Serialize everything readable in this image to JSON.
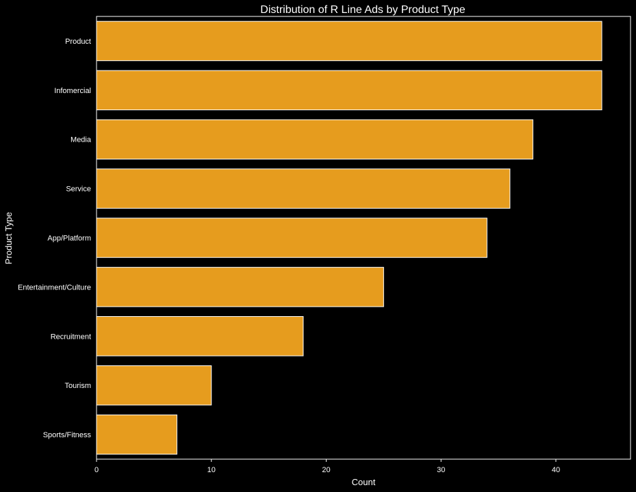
{
  "chart_data": {
    "type": "bar",
    "orientation": "horizontal",
    "title": "Distribution of R Line Ads by Product Type",
    "xlabel": "Count",
    "ylabel": "Product Type",
    "categories": [
      "Product",
      "Infomercial",
      "Media",
      "Service",
      "App/Platform",
      "Entertainment/Culture",
      "Recruitment",
      "Tourism",
      "Sports/Fitness"
    ],
    "values": [
      44,
      44,
      38,
      36,
      34,
      25,
      18,
      10,
      7
    ],
    "xlim": [
      0,
      46.5
    ],
    "xticks": [
      "0",
      "10",
      "20",
      "30",
      "40"
    ],
    "grid": false,
    "colors": {
      "background": "#000000",
      "bar_fill": "#e69c1e",
      "bar_edge": "#ffffff",
      "axis": "#ffffff",
      "text": "#ffffff"
    }
  }
}
